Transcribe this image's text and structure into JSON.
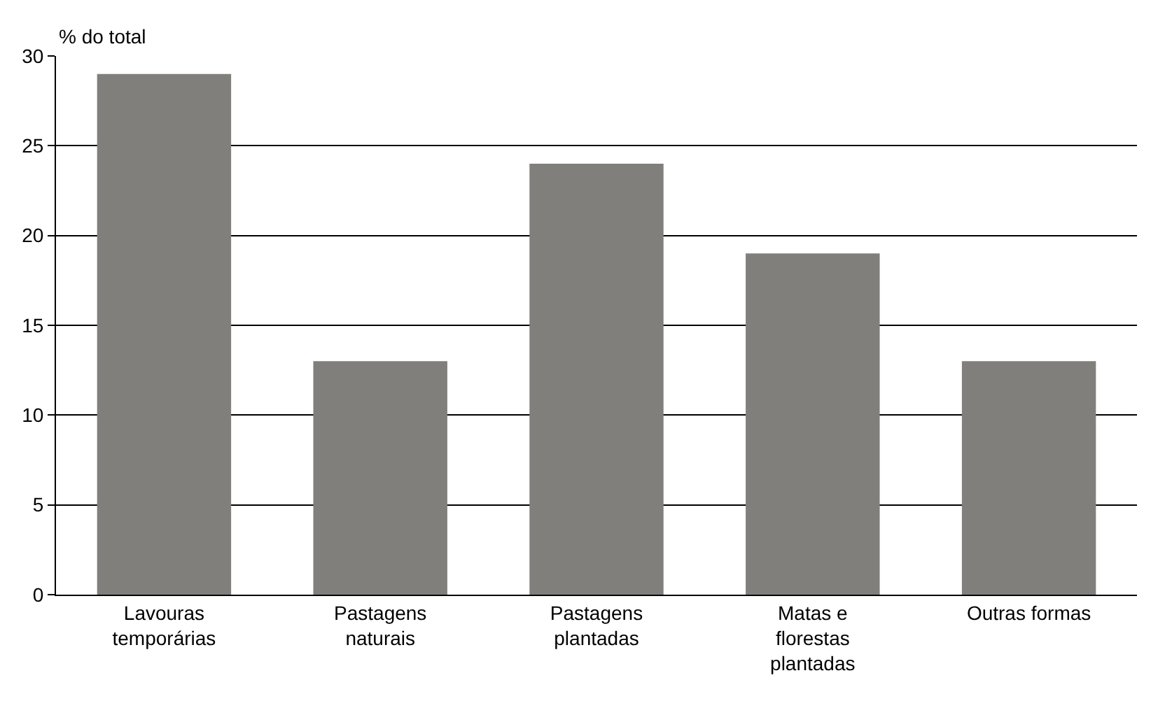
{
  "chart_data": {
    "type": "bar",
    "ylabel": "% do total",
    "categories": [
      "Lavouras\ntemporárias",
      "Pastagens\nnaturais",
      "Pastagens\nplantadas",
      "Matas e\nflorestas\nplantadas",
      "Outras formas"
    ],
    "values": [
      29,
      13,
      24,
      19,
      13
    ],
    "color": "#807f7c",
    "ylim": [
      0,
      30
    ],
    "yticks": [
      0,
      5,
      10,
      15,
      20,
      25,
      30
    ],
    "grid": "y",
    "legend": false
  }
}
